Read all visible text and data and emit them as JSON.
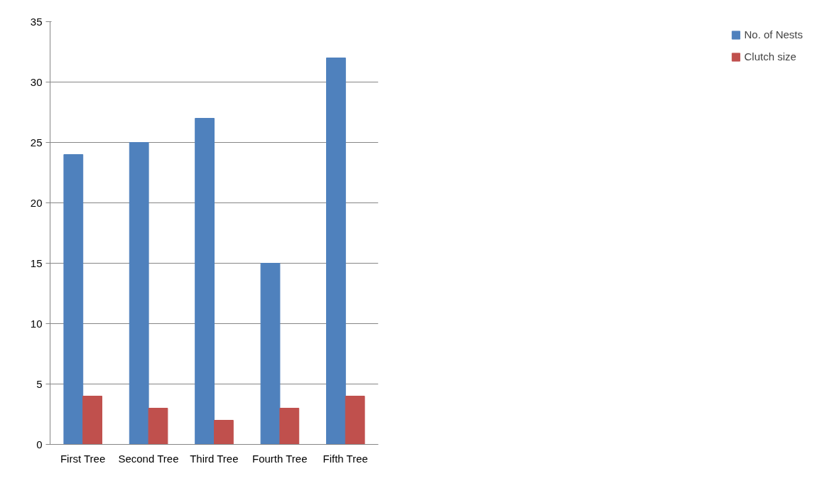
{
  "chart_data": {
    "type": "bar",
    "categories": [
      "First Tree",
      "Second Tree",
      "Third Tree",
      "Fourth Tree",
      "Fifth Tree"
    ],
    "series": [
      {
        "name": "No. of Nests",
        "color": "#4f81bd",
        "values": [
          24,
          25,
          27,
          15,
          32
        ]
      },
      {
        "name": "Clutch size",
        "color": "#c0504d",
        "values": [
          4,
          3,
          2,
          3,
          4
        ]
      }
    ],
    "ylim": [
      0,
      35
    ],
    "yticks": [
      0,
      5,
      10,
      15,
      20,
      25,
      30,
      35
    ],
    "grid": "y",
    "legend": "right"
  }
}
